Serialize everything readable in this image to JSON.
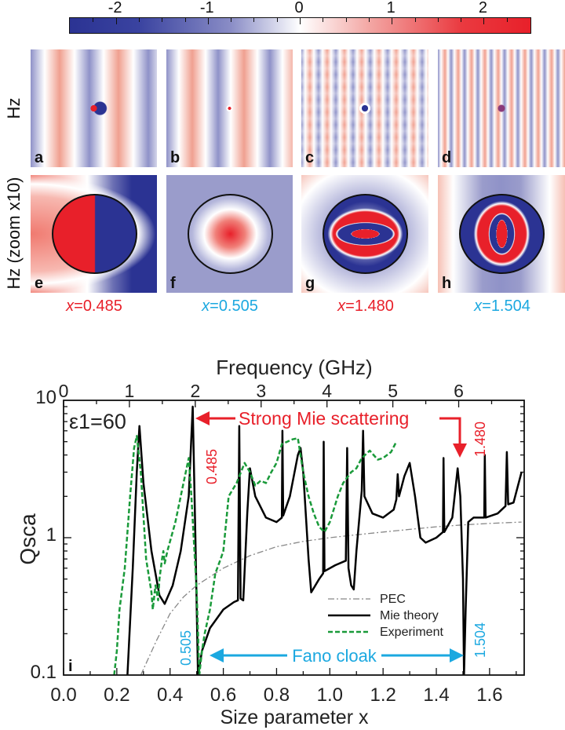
{
  "colorbar": {
    "range": [
      -2.5,
      2.5
    ],
    "ticks": [
      "-2",
      "-1",
      "0",
      "1",
      "2"
    ],
    "colors": {
      "negative": "#2b3393",
      "zero": "#ffffff",
      "positive": "#e8202a"
    }
  },
  "row_labels": {
    "top": "Hz",
    "bottom": "Hz (zoom x10)"
  },
  "panels": [
    {
      "letter": "a"
    },
    {
      "letter": "b"
    },
    {
      "letter": "c"
    },
    {
      "letter": "d"
    },
    {
      "letter": "e"
    },
    {
      "letter": "f"
    },
    {
      "letter": "g"
    },
    {
      "letter": "h"
    }
  ],
  "size_labels": [
    {
      "prefix": "x",
      "value": "=0.485",
      "color": "#e8202a"
    },
    {
      "prefix": "x",
      "value": "=0.505",
      "color": "#1ba8e0"
    },
    {
      "prefix": "x",
      "value": "=1.480",
      "color": "#e8202a"
    },
    {
      "prefix": "x",
      "value": "=1.504",
      "color": "#1ba8e0"
    }
  ],
  "chart_data": {
    "type": "line",
    "panel_label": "i",
    "xlabel": "Size parameter x",
    "x2label": "Frequency (GHz)",
    "ylabel": "Qsca",
    "xlim": [
      0,
      1.73
    ],
    "ylim": [
      0.1,
      10
    ],
    "yscale": "log",
    "xticks": [
      "0.0",
      "0.2",
      "0.4",
      "0.6",
      "0.8",
      "1.0",
      "1.2",
      "1.4",
      "1.6"
    ],
    "x2ticks": [
      "0",
      "1",
      "2",
      "3",
      "4",
      "5",
      "6"
    ],
    "yticks": [
      "0.1",
      "1",
      "10"
    ],
    "annotation_eps": "ε1=60",
    "annotations": {
      "strong": "Strong Mie scattering",
      "fano": "Fano cloak",
      "v0485": "0.485",
      "v1480": "1.480",
      "v0505": "0.505",
      "v1504": "1.504"
    },
    "legend_position": "bottom-right",
    "series": [
      {
        "name": "PEC",
        "style": "dash-dot",
        "color": "#888888",
        "points": [
          [
            0.29,
            0.1
          ],
          [
            0.35,
            0.18
          ],
          [
            0.4,
            0.28
          ],
          [
            0.45,
            0.37
          ],
          [
            0.5,
            0.45
          ],
          [
            0.6,
            0.6
          ],
          [
            0.7,
            0.74
          ],
          [
            0.8,
            0.86
          ],
          [
            0.9,
            0.94
          ],
          [
            1.0,
            1.0
          ],
          [
            1.1,
            1.05
          ],
          [
            1.2,
            1.1
          ],
          [
            1.3,
            1.15
          ],
          [
            1.4,
            1.2
          ],
          [
            1.5,
            1.24
          ],
          [
            1.6,
            1.27
          ],
          [
            1.72,
            1.3
          ]
        ]
      },
      {
        "name": "Mie theory",
        "style": "solid",
        "color": "#000000",
        "points": [
          [
            0.24,
            0.1
          ],
          [
            0.26,
            0.6
          ],
          [
            0.275,
            3
          ],
          [
            0.285,
            6.5
          ],
          [
            0.3,
            2.5
          ],
          [
            0.33,
            0.8
          ],
          [
            0.36,
            0.38
          ],
          [
            0.38,
            0.33
          ],
          [
            0.41,
            0.45
          ],
          [
            0.44,
            0.8
          ],
          [
            0.47,
            2
          ],
          [
            0.485,
            9
          ],
          [
            0.495,
            1
          ],
          [
            0.505,
            0.1
          ],
          [
            0.52,
            0.15
          ],
          [
            0.55,
            0.22
          ],
          [
            0.6,
            0.3
          ],
          [
            0.64,
            0.34
          ],
          [
            0.655,
            0.35
          ],
          [
            0.66,
            6.5
          ],
          [
            0.665,
            0.36
          ],
          [
            0.675,
            0.35
          ],
          [
            0.69,
            1.5
          ],
          [
            0.7,
            3.2
          ],
          [
            0.72,
            2.0
          ],
          [
            0.76,
            1.4
          ],
          [
            0.8,
            1.3
          ],
          [
            0.82,
            1.4
          ],
          [
            0.822,
            6
          ],
          [
            0.825,
            1.45
          ],
          [
            0.85,
            2
          ],
          [
            0.88,
            4
          ],
          [
            0.89,
            4.5
          ],
          [
            0.9,
            3
          ],
          [
            0.92,
            0.7
          ],
          [
            0.93,
            0.4
          ],
          [
            0.96,
            0.5
          ],
          [
            0.975,
            0.55
          ],
          [
            0.977,
            5
          ],
          [
            0.98,
            0.57
          ],
          [
            1.02,
            0.63
          ],
          [
            1.06,
            0.68
          ],
          [
            1.065,
            4.5
          ],
          [
            1.07,
            0.6
          ],
          [
            1.08,
            0.45
          ],
          [
            1.09,
            0.42
          ],
          [
            1.1,
            0.8
          ],
          [
            1.12,
            2.2
          ],
          [
            1.125,
            6
          ],
          [
            1.13,
            2.0
          ],
          [
            1.16,
            1.5
          ],
          [
            1.2,
            1.4
          ],
          [
            1.24,
            1.6
          ],
          [
            1.25,
            1.9
          ],
          [
            1.255,
            2.9
          ],
          [
            1.26,
            2.0
          ],
          [
            1.28,
            2.8
          ],
          [
            1.3,
            3.5
          ],
          [
            1.32,
            2
          ],
          [
            1.34,
            1.0
          ],
          [
            1.36,
            0.92
          ],
          [
            1.4,
            1.0
          ],
          [
            1.425,
            1.1
          ],
          [
            1.427,
            3.8
          ],
          [
            1.43,
            1.1
          ],
          [
            1.46,
            1.4
          ],
          [
            1.48,
            3.2
          ],
          [
            1.49,
            2
          ],
          [
            1.5,
            0.5
          ],
          [
            1.504,
            0.1
          ],
          [
            1.51,
            0.3
          ],
          [
            1.52,
            1.3
          ],
          [
            1.54,
            1.4
          ],
          [
            1.58,
            1.4
          ],
          [
            1.582,
            4
          ],
          [
            1.585,
            1.4
          ],
          [
            1.63,
            1.5
          ],
          [
            1.66,
            1.7
          ],
          [
            1.665,
            4.2
          ],
          [
            1.67,
            1.75
          ],
          [
            1.69,
            1.8
          ],
          [
            1.72,
            3
          ]
        ]
      },
      {
        "name": "Experiment",
        "style": "dashed",
        "color": "#1a9a3a",
        "points": [
          [
            0.19,
            0.1
          ],
          [
            0.2,
            0.15
          ],
          [
            0.21,
            0.3
          ],
          [
            0.23,
            0.6
          ],
          [
            0.25,
            2
          ],
          [
            0.265,
            4.5
          ],
          [
            0.275,
            5.5
          ],
          [
            0.29,
            3
          ],
          [
            0.31,
            0.7
          ],
          [
            0.33,
            0.4
          ],
          [
            0.335,
            0.3
          ],
          [
            0.345,
            0.45
          ],
          [
            0.355,
            0.35
          ],
          [
            0.36,
            0.5
          ],
          [
            0.37,
            0.7
          ],
          [
            0.375,
            0.8
          ],
          [
            0.38,
            0.65
          ],
          [
            0.39,
            0.8
          ],
          [
            0.42,
            1.3
          ],
          [
            0.44,
            2
          ],
          [
            0.47,
            3.8
          ],
          [
            0.48,
            2
          ],
          [
            0.5,
            0.4
          ],
          [
            0.51,
            0.1
          ],
          [
            0.52,
            0.15
          ],
          [
            0.53,
            0.2
          ],
          [
            0.55,
            0.3
          ],
          [
            0.57,
            0.55
          ],
          [
            0.59,
            0.7
          ],
          [
            0.6,
            0.8
          ],
          [
            0.62,
            2
          ],
          [
            0.65,
            2.5
          ],
          [
            0.68,
            3.5
          ],
          [
            0.7,
            3
          ],
          [
            0.72,
            2.4
          ],
          [
            0.74,
            2.6
          ],
          [
            0.76,
            2.5
          ],
          [
            0.78,
            3
          ],
          [
            0.8,
            3.5
          ],
          [
            0.82,
            4.8
          ],
          [
            0.84,
            5
          ],
          [
            0.86,
            5.2
          ],
          [
            0.88,
            5.3
          ],
          [
            0.9,
            3
          ],
          [
            0.92,
            2
          ],
          [
            0.94,
            1.5
          ],
          [
            0.96,
            1.2
          ],
          [
            0.98,
            1.1
          ],
          [
            1.0,
            1.3
          ],
          [
            1.03,
            2
          ],
          [
            1.05,
            2.5
          ],
          [
            1.08,
            3
          ],
          [
            1.1,
            3.2
          ],
          [
            1.12,
            3.8
          ],
          [
            1.15,
            4.3
          ],
          [
            1.18,
            3.7
          ],
          [
            1.2,
            3.8
          ],
          [
            1.23,
            4.2
          ],
          [
            1.25,
            5
          ]
        ]
      }
    ]
  }
}
